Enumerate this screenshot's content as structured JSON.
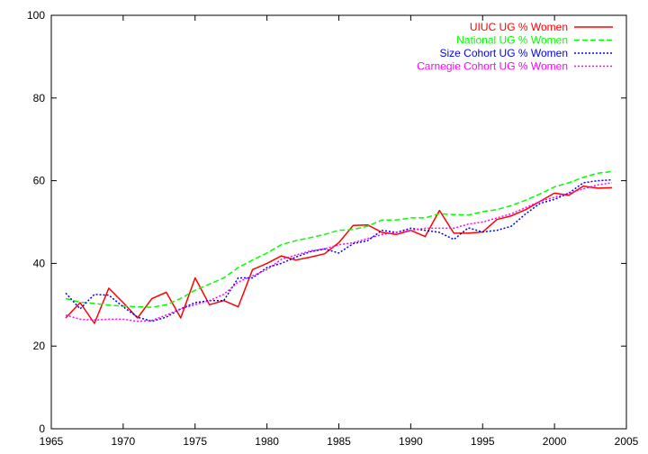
{
  "chart_data": {
    "type": "line",
    "title": "",
    "xlabel": "",
    "ylabel": "",
    "xlim": [
      1965,
      2005
    ],
    "ylim": [
      0,
      100
    ],
    "xticks": [
      "1965",
      "1970",
      "1975",
      "1980",
      "1985",
      "1990",
      "1995",
      "2000",
      "2005"
    ],
    "yticks": [
      "0",
      "20",
      "40",
      "60",
      "80",
      "100"
    ],
    "grid": false,
    "legend_position": "top-right",
    "series": [
      {
        "name": "UIUC UG % Women",
        "color": "#ff0000",
        "style": "solid",
        "x": [
          1966,
          1967,
          1968,
          1969,
          1970,
          1971,
          1972,
          1973,
          1974,
          1975,
          1976,
          1977,
          1978,
          1979,
          1980,
          1981,
          1982,
          1983,
          1984,
          1985,
          1986,
          1987,
          1988,
          1989,
          1990,
          1991,
          1992,
          1993,
          1994,
          1995,
          1996,
          1997,
          1998,
          1999,
          2000,
          2001,
          2002,
          2003,
          2004
        ],
        "y": [
          26.8,
          30.5,
          25.5,
          34.0,
          30.5,
          26.8,
          31.5,
          33.0,
          26.8,
          36.5,
          30.0,
          31.0,
          29.5,
          38.5,
          40.0,
          41.8,
          40.8,
          41.5,
          42.3,
          45.0,
          49.2,
          49.3,
          47.5,
          47.0,
          48.0,
          46.5,
          52.8,
          47.3,
          47.3,
          47.6,
          50.6,
          51.5,
          53.0,
          55.0,
          57.0,
          56.5,
          58.7,
          58.2,
          58.3
        ]
      },
      {
        "name": "National UG % Women",
        "color": "#00ff00",
        "style": "dashed",
        "x": [
          1966,
          1967,
          1968,
          1969,
          1970,
          1971,
          1972,
          1973,
          1974,
          1975,
          1976,
          1977,
          1978,
          1979,
          1980,
          1981,
          1982,
          1983,
          1984,
          1985,
          1986,
          1987,
          1988,
          1989,
          1990,
          1991,
          1992,
          1993,
          1994,
          1995,
          1996,
          1997,
          1998,
          1999,
          2000,
          2001,
          2002,
          2003,
          2004
        ],
        "y": [
          31.5,
          30.6,
          30.3,
          29.9,
          29.7,
          29.5,
          29.4,
          30.0,
          31.5,
          33.5,
          35.0,
          36.5,
          39.0,
          40.8,
          42.5,
          44.5,
          45.5,
          46.2,
          47.0,
          48.0,
          48.2,
          49.0,
          50.5,
          50.5,
          51.0,
          51.0,
          52.0,
          51.8,
          51.7,
          52.5,
          53.0,
          54.0,
          55.3,
          56.8,
          58.5,
          59.5,
          60.8,
          61.8,
          62.2
        ]
      },
      {
        "name": "Size Cohort UG % Women",
        "color": "#0000ff",
        "style": "dotted",
        "x": [
          1966,
          1967,
          1968,
          1969,
          1970,
          1971,
          1972,
          1973,
          1974,
          1975,
          1976,
          1977,
          1978,
          1979,
          1980,
          1981,
          1982,
          1983,
          1984,
          1985,
          1986,
          1987,
          1988,
          1989,
          1990,
          1991,
          1992,
          1993,
          1994,
          1995,
          1996,
          1997,
          1998,
          1999,
          2000,
          2001,
          2002,
          2003,
          2004
        ],
        "y": [
          32.8,
          29.0,
          32.5,
          32.3,
          29.5,
          27.0,
          26.0,
          27.0,
          29.0,
          30.5,
          31.0,
          31.0,
          36.5,
          36.5,
          39.0,
          40.0,
          41.5,
          42.8,
          43.5,
          42.5,
          44.8,
          45.5,
          48.0,
          47.5,
          48.5,
          48.0,
          47.5,
          45.8,
          48.6,
          47.6,
          48.0,
          49.0,
          52.0,
          54.5,
          55.5,
          57.0,
          59.5,
          60.0,
          60.2
        ]
      },
      {
        "name": "Carnegie Cohort UG % Women",
        "color": "#ff00ff",
        "style": "dotted",
        "x": [
          1966,
          1967,
          1968,
          1969,
          1970,
          1971,
          1972,
          1973,
          1974,
          1975,
          1976,
          1977,
          1978,
          1979,
          1980,
          1981,
          1982,
          1983,
          1984,
          1985,
          1986,
          1987,
          1988,
          1989,
          1990,
          1991,
          1992,
          1993,
          1994,
          1995,
          1996,
          1997,
          1998,
          1999,
          2000,
          2001,
          2002,
          2003,
          2004
        ],
        "y": [
          27.5,
          26.5,
          26.3,
          26.5,
          26.5,
          26.0,
          26.2,
          27.5,
          29.0,
          30.0,
          31.0,
          32.5,
          35.5,
          37.0,
          38.5,
          41.0,
          42.0,
          43.0,
          43.5,
          44.5,
          45.0,
          46.0,
          47.0,
          47.5,
          48.0,
          48.5,
          48.5,
          48.5,
          49.5,
          50.0,
          51.0,
          52.0,
          53.5,
          55.0,
          56.0,
          57.0,
          58.0,
          59.0,
          59.5
        ]
      }
    ]
  }
}
